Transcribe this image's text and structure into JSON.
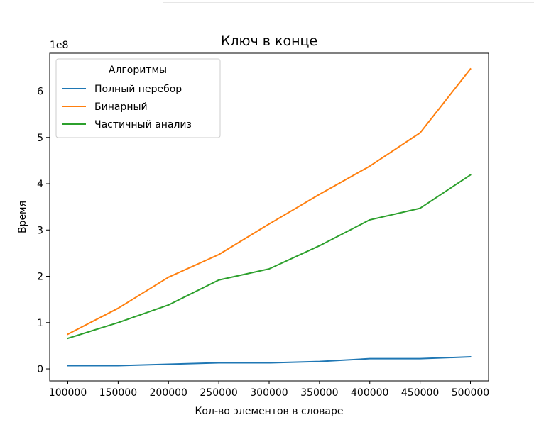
{
  "chart_data": {
    "type": "line",
    "title": "Ключ в конце",
    "xlabel": "Кол-во элементов в словаре",
    "ylabel": "Время",
    "y_offset_label": "1e8",
    "x": [
      100000,
      150000,
      200000,
      250000,
      300000,
      350000,
      400000,
      450000,
      500000
    ],
    "xticks": [
      100000,
      150000,
      200000,
      250000,
      300000,
      350000,
      400000,
      450000,
      500000
    ],
    "yticks": [
      0,
      1,
      2,
      3,
      4,
      5,
      6
    ],
    "ytick_multiplier": 100000000,
    "xlim": [
      82000,
      518000
    ],
    "ylim": [
      -0.26,
      6.82
    ],
    "grid": false,
    "legend": {
      "title": "Алгоритмы",
      "placement": "top-left"
    },
    "series": [
      {
        "name": "Полный перебор",
        "color": "#1f77b4",
        "values": [
          0.07,
          0.07,
          0.1,
          0.13,
          0.13,
          0.16,
          0.22,
          0.22,
          0.26
        ]
      },
      {
        "name": "Бинарный",
        "color": "#ff7f0e",
        "values": [
          0.75,
          1.31,
          1.98,
          2.47,
          3.13,
          3.77,
          4.38,
          5.1,
          6.48
        ]
      },
      {
        "name": "Частичный анализ",
        "color": "#2ca02c",
        "values": [
          0.66,
          1.0,
          1.38,
          1.92,
          2.16,
          2.66,
          3.22,
          3.47,
          4.19
        ]
      }
    ]
  }
}
